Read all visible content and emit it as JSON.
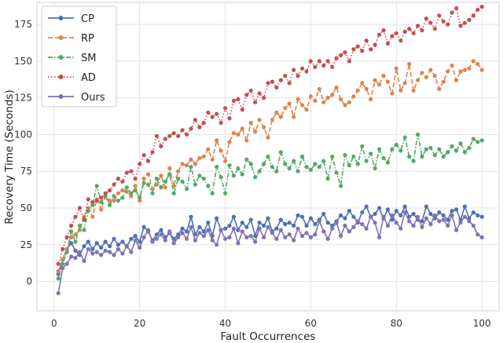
{
  "chart_data": {
    "type": "line",
    "title": "",
    "xlabel": "Fault Occurrences",
    "ylabel": "Recovery Time (Seconds)",
    "xlim": [
      -4,
      104
    ],
    "ylim": [
      -20,
      190
    ],
    "xticks": [
      0,
      20,
      40,
      60,
      80,
      100
    ],
    "yticks": [
      0,
      25,
      50,
      75,
      100,
      125,
      150,
      175
    ],
    "grid": true,
    "legend_position": "top-left",
    "x": [
      1,
      2,
      3,
      4,
      5,
      6,
      7,
      8,
      9,
      10,
      11,
      12,
      13,
      14,
      15,
      16,
      17,
      18,
      19,
      20,
      21,
      22,
      23,
      24,
      25,
      26,
      27,
      28,
      29,
      30,
      31,
      32,
      33,
      34,
      35,
      36,
      37,
      38,
      39,
      40,
      41,
      42,
      43,
      44,
      45,
      46,
      47,
      48,
      49,
      50,
      51,
      52,
      53,
      54,
      55,
      56,
      57,
      58,
      59,
      60,
      61,
      62,
      63,
      64,
      65,
      66,
      67,
      68,
      69,
      70,
      71,
      72,
      73,
      74,
      75,
      76,
      77,
      78,
      79,
      80,
      81,
      82,
      83,
      84,
      85,
      86,
      87,
      88,
      89,
      90,
      91,
      92,
      93,
      94,
      95,
      96,
      97,
      98,
      99,
      100
    ],
    "series": [
      {
        "name": "CP",
        "color": "#4c72b0",
        "linestyle": "solid",
        "values": [
          5,
          15,
          22,
          26,
          21,
          18,
          24,
          27,
          22,
          26,
          23,
          27,
          24,
          29,
          25,
          27,
          24,
          29,
          31,
          27,
          37,
          34,
          28,
          32,
          35,
          30,
          33,
          29,
          32,
          36,
          34,
          44,
          32,
          37,
          34,
          40,
          31,
          43,
          35,
          36,
          38,
          44,
          35,
          40,
          37,
          42,
          31,
          40,
          38,
          43,
          34,
          36,
          42,
          39,
          40,
          38,
          45,
          44,
          38,
          43,
          39,
          42,
          46,
          40,
          38,
          41,
          45,
          43,
          48,
          44,
          40,
          47,
          51,
          44,
          46,
          50,
          43,
          49,
          42,
          48,
          45,
          51,
          44,
          46,
          42,
          41,
          51,
          46,
          43,
          47,
          45,
          42,
          48,
          49,
          42,
          51,
          43,
          47,
          45,
          44
        ]
      },
      {
        "name": "RP",
        "color": "#dd8452",
        "linestyle": "dashed",
        "values": [
          7,
          15,
          22,
          30,
          32,
          35,
          44,
          50,
          44,
          56,
          49,
          58,
          55,
          55,
          60,
          62,
          61,
          58,
          65,
          55,
          70,
          73,
          63,
          66,
          72,
          64,
          77,
          65,
          75,
          80,
          79,
          83,
          80,
          84,
          85,
          90,
          83,
          96,
          89,
          82,
          95,
          101,
          100,
          104,
          96,
          108,
          102,
          110,
          105,
          98,
          110,
          115,
          112,
          118,
          121,
          112,
          124,
          120,
          117,
          126,
          123,
          131,
          122,
          125,
          127,
          132,
          124,
          120,
          122,
          126,
          130,
          135,
          131,
          124,
          137,
          134,
          140,
          136,
          128,
          145,
          130,
          135,
          148,
          130,
          137,
          142,
          139,
          144,
          140,
          131,
          136,
          143,
          147,
          137,
          143,
          144,
          145,
          150,
          148,
          144
        ]
      },
      {
        "name": "SM",
        "color": "#55a868",
        "linestyle": "dashdot",
        "values": [
          2,
          12,
          20,
          34,
          27,
          38,
          35,
          48,
          52,
          65,
          54,
          58,
          52,
          58,
          55,
          57,
          64,
          60,
          62,
          57,
          67,
          66,
          60,
          70,
          64,
          68,
          73,
          60,
          70,
          68,
          63,
          78,
          66,
          72,
          70,
          65,
          60,
          78,
          71,
          60,
          79,
          72,
          77,
          73,
          83,
          80,
          71,
          75,
          80,
          85,
          78,
          75,
          88,
          80,
          77,
          82,
          75,
          85,
          78,
          76,
          80,
          78,
          82,
          70,
          85,
          74,
          65,
          86,
          79,
          85,
          80,
          92,
          82,
          87,
          77,
          90,
          84,
          81,
          90,
          93,
          89,
          98,
          85,
          82,
          100,
          85,
          90,
          91,
          86,
          90,
          85,
          88,
          92,
          89,
          94,
          88,
          91,
          97,
          95,
          96
        ]
      },
      {
        "name": "AD",
        "color": "#c44e52",
        "linestyle": "dotted",
        "values": [
          12,
          22,
          30,
          38,
          44,
          50,
          42,
          56,
          54,
          55,
          57,
          60,
          62,
          66,
          70,
          68,
          74,
          75,
          70,
          80,
          86,
          82,
          88,
          99,
          92,
          97,
          99,
          101,
          99,
          103,
          100,
          104,
          110,
          105,
          108,
          115,
          112,
          114,
          108,
          118,
          111,
          123,
          124,
          117,
          127,
          130,
          122,
          128,
          125,
          135,
          136,
          132,
          137,
          140,
          135,
          144,
          140,
          145,
          143,
          150,
          146,
          150,
          147,
          150,
          146,
          152,
          154,
          156,
          150,
          158,
          160,
          157,
          164,
          158,
          161,
          168,
          171,
          162,
          167,
          169,
          164,
          170,
          172,
          169,
          174,
          171,
          179,
          176,
          172,
          181,
          177,
          175,
          183,
          186,
          174,
          176,
          178,
          181,
          185,
          187
        ]
      },
      {
        "name": "Ours",
        "color": "#8172b3",
        "linestyle": "solid",
        "values": [
          -8,
          9,
          12,
          17,
          16,
          20,
          14,
          22,
          19,
          20,
          18,
          21,
          20,
          18,
          22,
          19,
          24,
          20,
          28,
          23,
          30,
          35,
          27,
          29,
          32,
          28,
          34,
          26,
          30,
          33,
          29,
          37,
          28,
          33,
          31,
          35,
          28,
          25,
          35,
          29,
          30,
          36,
          26,
          34,
          30,
          31,
          27,
          36,
          30,
          37,
          33,
          29,
          35,
          30,
          32,
          28,
          36,
          31,
          33,
          30,
          32,
          41,
          34,
          29,
          36,
          40,
          31,
          38,
          34,
          37,
          41,
          39,
          36,
          44,
          40,
          30,
          44,
          38,
          45,
          40,
          36,
          47,
          41,
          38,
          44,
          37,
          43,
          39,
          45,
          41,
          42,
          38,
          45,
          35,
          40,
          44,
          41,
          38,
          32,
          30
        ]
      }
    ]
  }
}
